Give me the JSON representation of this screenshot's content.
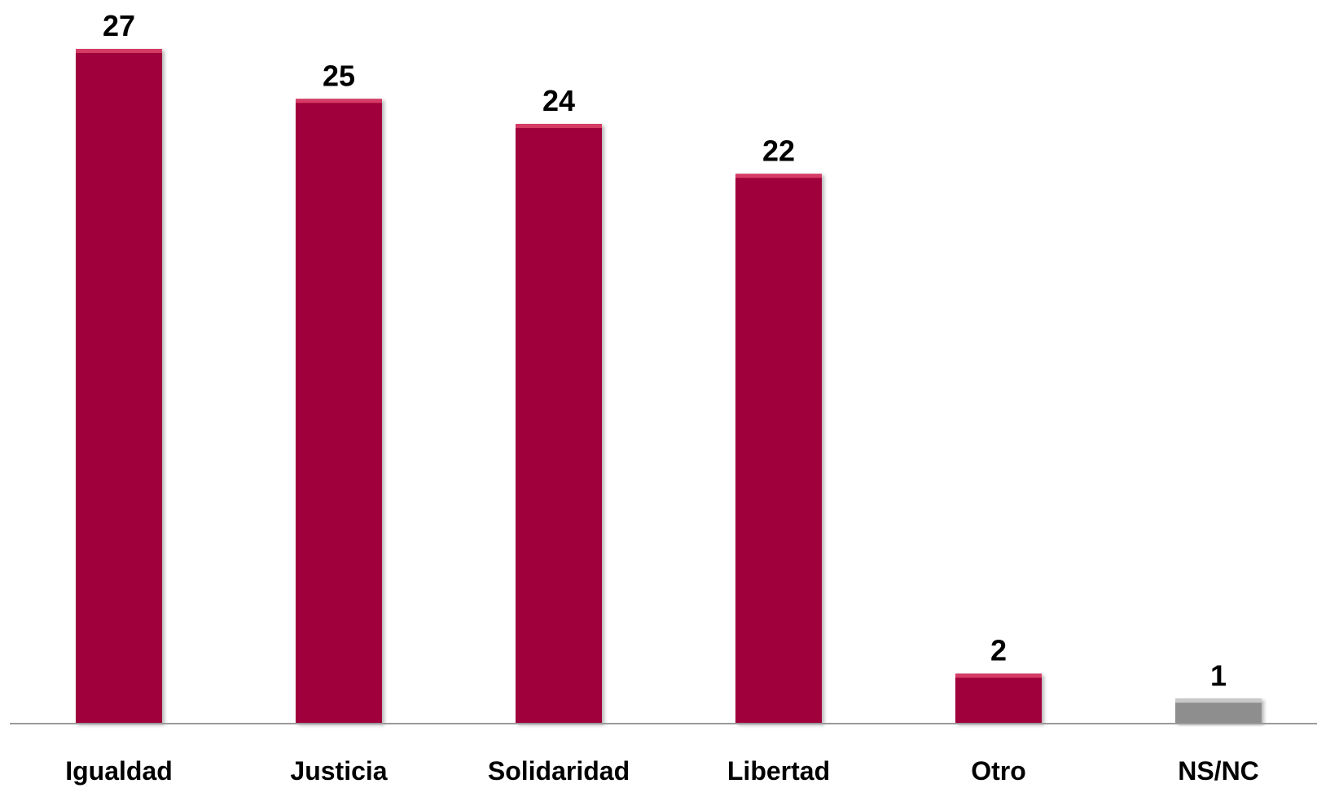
{
  "chart_data": {
    "type": "bar",
    "title": "",
    "xlabel": "",
    "ylabel": "",
    "categories": [
      "Igualdad",
      "Justicia",
      "Solidaridad",
      "Libertad",
      "Otro",
      "NS/NC"
    ],
    "values": [
      27,
      25,
      24,
      22,
      2,
      1
    ],
    "ylim": [
      0,
      27
    ],
    "grid": false,
    "legend": "none",
    "data_labels": true,
    "colors": {
      "primary": "#a0043a",
      "primary_highlight": "#d63a66",
      "nsnc": "#8e8e8e",
      "nsnc_highlight": "#c8c8c8",
      "axis": "#9a9a9a"
    }
  }
}
